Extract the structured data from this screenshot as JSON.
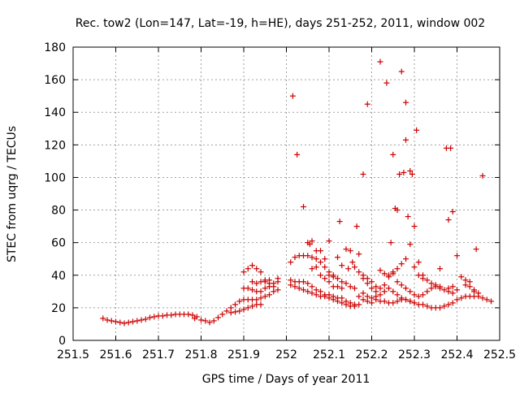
{
  "chart_data": {
    "type": "scatter",
    "title": "Rec. tow2 (Lon=147, Lat=-19, h=HE), days 251-252, 2011, window 002",
    "xlabel": "GPS time / Days of year 2011",
    "ylabel": "STEC from uqrg / TECUs",
    "xlim": [
      251.5,
      252.5
    ],
    "ylim": [
      0,
      180
    ],
    "x_ticks": [
      251.5,
      251.6,
      251.7,
      251.8,
      251.9,
      252.0,
      252.1,
      252.2,
      252.3,
      252.4,
      252.5
    ],
    "x_tick_labels": [
      "251.5",
      "251.6",
      "251.7",
      "251.8",
      "251.9",
      "252",
      "252.1",
      "252.2",
      "252.3",
      "252.4",
      "252.5"
    ],
    "y_ticks": [
      0,
      20,
      40,
      60,
      80,
      100,
      120,
      140,
      160,
      180
    ],
    "y_tick_labels": [
      "0",
      "20",
      "40",
      "60",
      "80",
      "100",
      "120",
      "140",
      "160",
      "180"
    ],
    "grid": true,
    "marker": "+",
    "color": "#cc0000",
    "series": [
      {
        "name": "STEC",
        "points": [
          [
            251.57,
            13.5
          ],
          [
            251.58,
            12.5
          ],
          [
            251.59,
            12
          ],
          [
            251.6,
            11.5
          ],
          [
            251.61,
            11
          ],
          [
            251.62,
            10.5
          ],
          [
            251.63,
            11
          ],
          [
            251.64,
            11.5
          ],
          [
            251.65,
            12
          ],
          [
            251.66,
            12.5
          ],
          [
            251.67,
            13
          ],
          [
            251.68,
            14
          ],
          [
            251.69,
            14.5
          ],
          [
            251.7,
            15
          ],
          [
            251.71,
            15
          ],
          [
            251.72,
            15.5
          ],
          [
            251.73,
            15.5
          ],
          [
            251.74,
            16
          ],
          [
            251.75,
            16
          ],
          [
            251.76,
            16
          ],
          [
            251.77,
            16
          ],
          [
            251.78,
            15.5
          ],
          [
            251.785,
            13.5
          ],
          [
            251.79,
            14.5
          ],
          [
            251.8,
            12.5
          ],
          [
            251.81,
            12
          ],
          [
            251.82,
            11
          ],
          [
            251.83,
            12
          ],
          [
            251.84,
            14
          ],
          [
            251.85,
            16
          ],
          [
            251.86,
            18
          ],
          [
            251.87,
            20
          ],
          [
            251.88,
            22
          ],
          [
            251.89,
            24
          ],
          [
            251.9,
            25
          ],
          [
            251.91,
            25
          ],
          [
            251.92,
            25
          ],
          [
            251.93,
            25
          ],
          [
            251.94,
            26
          ],
          [
            251.95,
            27
          ],
          [
            251.96,
            28
          ],
          [
            251.97,
            30
          ],
          [
            251.98,
            31
          ],
          [
            251.87,
            17
          ],
          [
            251.88,
            17.5
          ],
          [
            251.89,
            18
          ],
          [
            251.9,
            19
          ],
          [
            251.91,
            20
          ],
          [
            251.92,
            21
          ],
          [
            251.93,
            22
          ],
          [
            251.94,
            22
          ],
          [
            251.9,
            32
          ],
          [
            251.91,
            32
          ],
          [
            251.92,
            31
          ],
          [
            251.93,
            30
          ],
          [
            251.94,
            30
          ],
          [
            251.95,
            32
          ],
          [
            251.96,
            33
          ],
          [
            251.97,
            35
          ],
          [
            251.98,
            36
          ],
          [
            251.9,
            42
          ],
          [
            251.91,
            44
          ],
          [
            251.92,
            46
          ],
          [
            251.93,
            44
          ],
          [
            251.94,
            42
          ],
          [
            251.95,
            37
          ],
          [
            251.96,
            35
          ],
          [
            251.97,
            33
          ],
          [
            251.98,
            38
          ],
          [
            251.92,
            36
          ],
          [
            251.93,
            35
          ],
          [
            251.94,
            36
          ],
          [
            251.95,
            36
          ],
          [
            251.96,
            37
          ],
          [
            252.01,
            37
          ],
          [
            252.02,
            36
          ],
          [
            252.03,
            36
          ],
          [
            252.04,
            36
          ],
          [
            252.05,
            35
          ],
          [
            252.06,
            33
          ],
          [
            252.07,
            31
          ],
          [
            252.08,
            30
          ],
          [
            252.09,
            28
          ],
          [
            252.1,
            28
          ],
          [
            252.11,
            27
          ],
          [
            252.12,
            26
          ],
          [
            252.13,
            26
          ],
          [
            252.14,
            24
          ],
          [
            252.15,
            23
          ],
          [
            252.16,
            22
          ],
          [
            252.17,
            22
          ],
          [
            252.01,
            34
          ],
          [
            252.02,
            33
          ],
          [
            252.03,
            32
          ],
          [
            252.04,
            31
          ],
          [
            252.05,
            30
          ],
          [
            252.06,
            29
          ],
          [
            252.07,
            28
          ],
          [
            252.08,
            27
          ],
          [
            252.09,
            27
          ],
          [
            252.1,
            26
          ],
          [
            252.11,
            25
          ],
          [
            252.12,
            24
          ],
          [
            252.13,
            23
          ],
          [
            252.14,
            22
          ],
          [
            252.15,
            21
          ],
          [
            252.16,
            21
          ],
          [
            252.01,
            48
          ],
          [
            252.02,
            51
          ],
          [
            252.03,
            52
          ],
          [
            252.04,
            52
          ],
          [
            252.05,
            52
          ],
          [
            252.06,
            51
          ],
          [
            252.07,
            50
          ],
          [
            252.08,
            48
          ],
          [
            252.09,
            45
          ],
          [
            252.1,
            42
          ],
          [
            252.11,
            40
          ],
          [
            252.12,
            38
          ],
          [
            252.13,
            36
          ],
          [
            252.14,
            35
          ],
          [
            252.15,
            33
          ],
          [
            252.16,
            32
          ],
          [
            252.05,
            60
          ],
          [
            252.055,
            59
          ],
          [
            252.06,
            61
          ],
          [
            252.07,
            55
          ],
          [
            252.08,
            55
          ],
          [
            252.09,
            50
          ],
          [
            252.1,
            40
          ],
          [
            252.11,
            39
          ],
          [
            252.06,
            44
          ],
          [
            252.07,
            45
          ],
          [
            252.08,
            40
          ],
          [
            252.09,
            38
          ],
          [
            252.1,
            36
          ],
          [
            252.11,
            33
          ],
          [
            252.12,
            33
          ],
          [
            252.13,
            32
          ],
          [
            252.12,
            51
          ],
          [
            252.13,
            46
          ],
          [
            252.14,
            56
          ],
          [
            252.145,
            44
          ],
          [
            252.15,
            55
          ],
          [
            252.155,
            48
          ],
          [
            252.16,
            45
          ],
          [
            252.17,
            42
          ],
          [
            252.18,
            40
          ],
          [
            252.19,
            38
          ],
          [
            252.2,
            36
          ],
          [
            252.21,
            33
          ],
          [
            252.17,
            53
          ],
          [
            252.18,
            38
          ],
          [
            252.19,
            35
          ],
          [
            252.2,
            32
          ],
          [
            252.21,
            30
          ],
          [
            252.22,
            32
          ],
          [
            252.23,
            34
          ],
          [
            252.24,
            40
          ],
          [
            252.25,
            42
          ],
          [
            252.26,
            44
          ],
          [
            252.27,
            47
          ],
          [
            252.28,
            50
          ],
          [
            252.18,
            29
          ],
          [
            252.19,
            27
          ],
          [
            252.2,
            26
          ],
          [
            252.21,
            25
          ],
          [
            252.22,
            24
          ],
          [
            252.23,
            24
          ],
          [
            252.24,
            23
          ],
          [
            252.25,
            23
          ],
          [
            252.26,
            24
          ],
          [
            252.27,
            25
          ],
          [
            252.28,
            25
          ],
          [
            252.29,
            24
          ],
          [
            252.3,
            23
          ],
          [
            252.31,
            22
          ],
          [
            252.32,
            22
          ],
          [
            252.33,
            21
          ],
          [
            252.34,
            20
          ],
          [
            252.35,
            20
          ],
          [
            252.36,
            20
          ],
          [
            252.37,
            21
          ],
          [
            252.38,
            22
          ],
          [
            252.39,
            23
          ],
          [
            252.4,
            25
          ],
          [
            252.41,
            26
          ],
          [
            252.42,
            27
          ],
          [
            252.43,
            27
          ],
          [
            252.44,
            27
          ],
          [
            252.45,
            27
          ],
          [
            252.46,
            26
          ],
          [
            252.47,
            25
          ],
          [
            252.48,
            24
          ],
          [
            252.17,
            27
          ],
          [
            252.18,
            25
          ],
          [
            252.19,
            24
          ],
          [
            252.2,
            23
          ],
          [
            252.21,
            27
          ],
          [
            252.22,
            28
          ],
          [
            252.23,
            30
          ],
          [
            252.24,
            32
          ],
          [
            252.25,
            30
          ],
          [
            252.26,
            28
          ],
          [
            252.27,
            26
          ],
          [
            252.28,
            25
          ],
          [
            252.29,
            24
          ],
          [
            252.3,
            23
          ],
          [
            252.22,
            43
          ],
          [
            252.23,
            41
          ],
          [
            252.24,
            39
          ],
          [
            252.25,
            41
          ],
          [
            252.26,
            36
          ],
          [
            252.27,
            34
          ],
          [
            252.28,
            32
          ],
          [
            252.29,
            30
          ],
          [
            252.3,
            28
          ],
          [
            252.31,
            27
          ],
          [
            252.32,
            28
          ],
          [
            252.33,
            30
          ],
          [
            252.34,
            32
          ],
          [
            252.35,
            33
          ],
          [
            252.36,
            32
          ],
          [
            252.37,
            31
          ],
          [
            252.38,
            30
          ],
          [
            252.39,
            29
          ],
          [
            252.29,
            59
          ],
          [
            252.3,
            45
          ],
          [
            252.31,
            40
          ],
          [
            252.32,
            38
          ],
          [
            252.33,
            37
          ],
          [
            252.34,
            35
          ],
          [
            252.35,
            34
          ],
          [
            252.36,
            33
          ],
          [
            252.31,
            48
          ],
          [
            252.32,
            40
          ],
          [
            252.36,
            44
          ],
          [
            252.38,
            32
          ],
          [
            252.39,
            33
          ],
          [
            252.4,
            31
          ],
          [
            252.41,
            39
          ],
          [
            252.42,
            37
          ],
          [
            252.43,
            36
          ],
          [
            252.44,
            31
          ],
          [
            252.45,
            29
          ],
          [
            252.42,
            34
          ],
          [
            252.43,
            33
          ],
          [
            252.44,
            30
          ],
          [
            252.015,
            150
          ],
          [
            252.025,
            114
          ],
          [
            252.04,
            82
          ],
          [
            252.1,
            61
          ],
          [
            252.125,
            73
          ],
          [
            252.165,
            70
          ],
          [
            252.18,
            102
          ],
          [
            252.19,
            145
          ],
          [
            252.22,
            171
          ],
          [
            252.235,
            158
          ],
          [
            252.245,
            60
          ],
          [
            252.25,
            114
          ],
          [
            252.255,
            81
          ],
          [
            252.26,
            80
          ],
          [
            252.265,
            102
          ],
          [
            252.27,
            165
          ],
          [
            252.275,
            103
          ],
          [
            252.28,
            146
          ],
          [
            252.28,
            123
          ],
          [
            252.285,
            76
          ],
          [
            252.29,
            104
          ],
          [
            252.295,
            102
          ],
          [
            252.3,
            70
          ],
          [
            252.305,
            129
          ],
          [
            252.375,
            118
          ],
          [
            252.385,
            118
          ],
          [
            252.38,
            74
          ],
          [
            252.39,
            79
          ],
          [
            252.4,
            52
          ],
          [
            252.445,
            56
          ],
          [
            252.46,
            101
          ]
        ]
      }
    ]
  }
}
